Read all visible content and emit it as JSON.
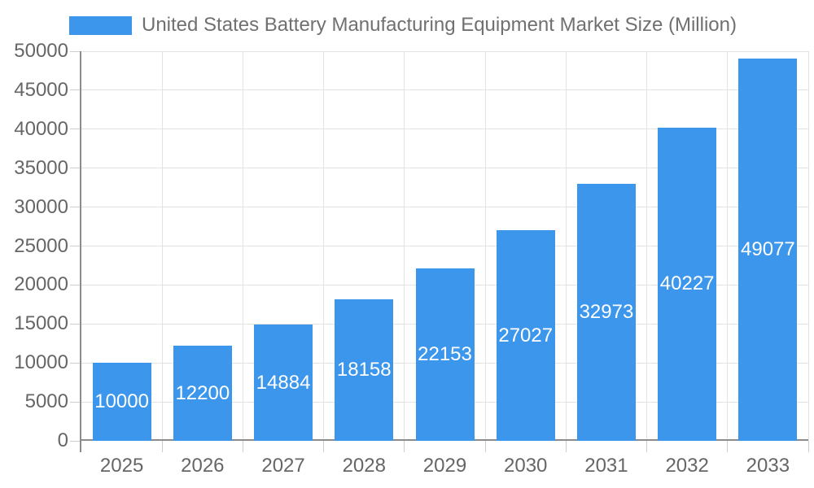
{
  "chart_data": {
    "type": "bar",
    "title": "United States Battery Manufacturing Equipment Market Size (Million)",
    "categories": [
      "2025",
      "2026",
      "2027",
      "2028",
      "2029",
      "2030",
      "2031",
      "2032",
      "2033"
    ],
    "values": [
      10000,
      12200,
      14884,
      18158,
      22153,
      27027,
      32973,
      40227,
      49077
    ],
    "xlabel": "",
    "ylabel": "",
    "ylim": [
      0,
      50000
    ],
    "ytick_step": 5000,
    "grid": true,
    "legend_position": "top",
    "value_label_position": "inside-center",
    "colors": {
      "bar": "#3c96eb",
      "bar_label": "#ffffff",
      "axis_label": "#666666",
      "legend_text": "#707070",
      "grid_line": "#e3e3e3",
      "axis_line": "#8c8c8c",
      "tick": "#cccccc",
      "background": "#ffffff"
    }
  }
}
